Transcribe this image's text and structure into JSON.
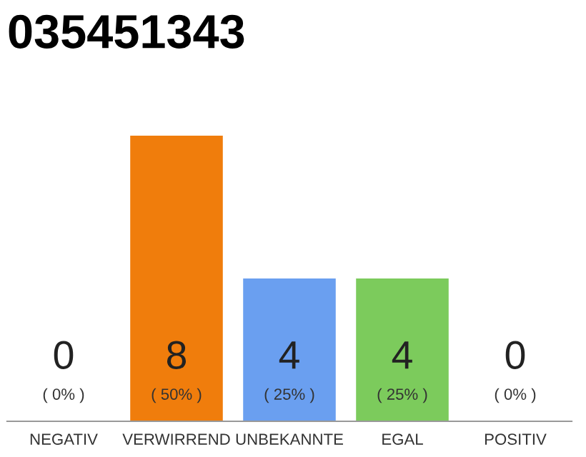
{
  "chart_data": {
    "type": "bar",
    "title": "035451343",
    "categories": [
      "NEGATIV",
      "VERWIRREND",
      "UNBEKANNTE",
      "EGAL",
      "POSITIV"
    ],
    "values": [
      0,
      8,
      4,
      4,
      0
    ],
    "colors": [
      "#aaaaaa",
      "#f07d0c",
      "#6a9ff0",
      "#7ccb5c",
      "#aaaaaa"
    ],
    "value_labels": [
      "0",
      "8",
      "4",
      "4",
      "0"
    ],
    "annotations": [
      "( 0% )",
      "( 50% )",
      "( 25% )",
      "( 25% )",
      "( 0% )"
    ],
    "tick_labels": "x",
    "grid": false
  }
}
